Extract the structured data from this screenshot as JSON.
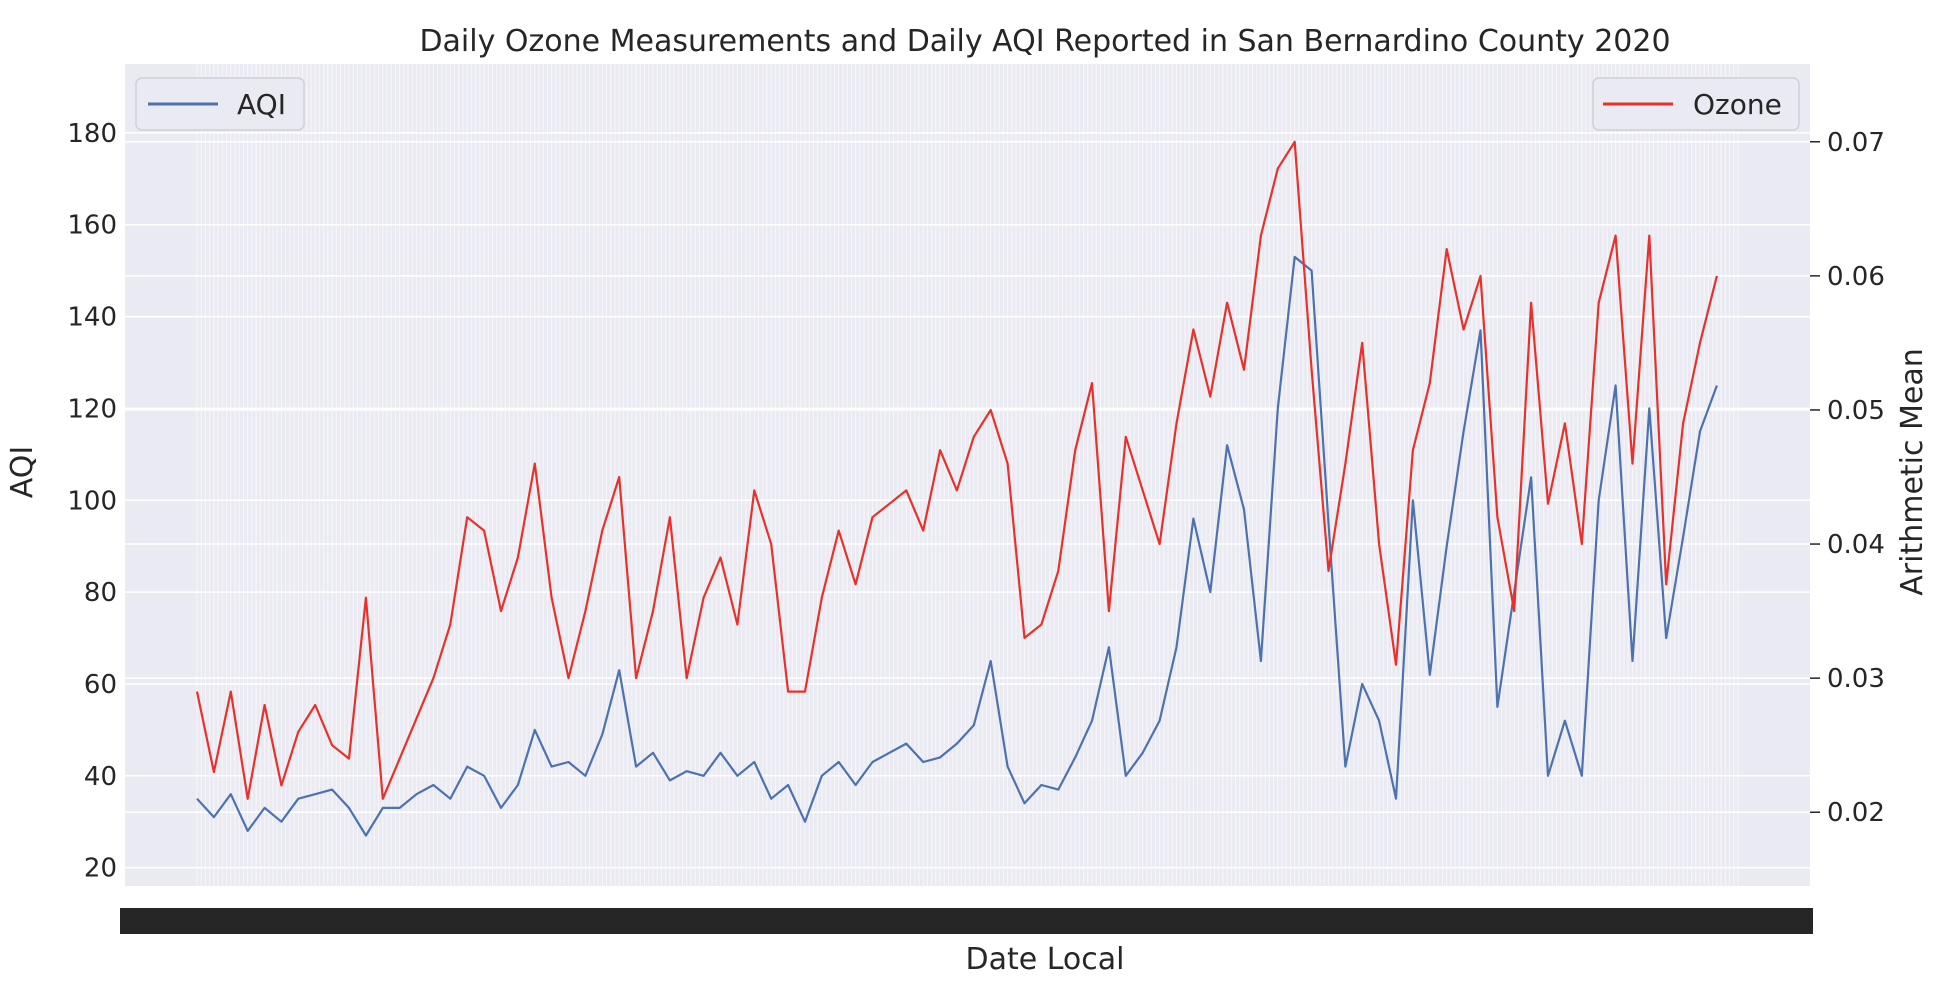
{
  "chart_data": {
    "type": "line",
    "title": "Daily Ozone Measurements and Daily AQI Reported in San Bernardino County 2020",
    "xlabel": "Date Local",
    "ylabel_left": "AQI",
    "ylabel_right": "Arithmetic Mean",
    "x_range_days": [
      0,
      365
    ],
    "left_axis": {
      "ylim": [
        16,
        195
      ],
      "ticks": [
        20,
        40,
        60,
        80,
        100,
        120,
        140,
        160,
        180
      ]
    },
    "right_axis": {
      "ylim": [
        0.0145,
        0.0758
      ],
      "ticks": [
        "0.02",
        "0.03",
        "0.04",
        "0.05",
        "0.06",
        "0.07"
      ]
    },
    "grid": true,
    "background": "#eaeaf2",
    "series": [
      {
        "name": "AQI",
        "axis": "left",
        "color": "#4c72b0",
        "legend_position": "top-left",
        "points": [
          [
            0,
            35
          ],
          [
            4,
            31
          ],
          [
            8,
            36
          ],
          [
            12,
            28
          ],
          [
            16,
            33
          ],
          [
            20,
            30
          ],
          [
            24,
            35
          ],
          [
            28,
            36
          ],
          [
            32,
            37
          ],
          [
            36,
            33
          ],
          [
            40,
            27
          ],
          [
            44,
            33
          ],
          [
            48,
            33
          ],
          [
            52,
            36
          ],
          [
            56,
            38
          ],
          [
            60,
            35
          ],
          [
            64,
            42
          ],
          [
            68,
            40
          ],
          [
            72,
            33
          ],
          [
            76,
            38
          ],
          [
            80,
            50
          ],
          [
            84,
            42
          ],
          [
            88,
            43
          ],
          [
            92,
            40
          ],
          [
            96,
            49
          ],
          [
            100,
            63
          ],
          [
            104,
            42
          ],
          [
            108,
            45
          ],
          [
            112,
            39
          ],
          [
            116,
            41
          ],
          [
            120,
            40
          ],
          [
            124,
            45
          ],
          [
            128,
            40
          ],
          [
            132,
            43
          ],
          [
            136,
            35
          ],
          [
            140,
            38
          ],
          [
            144,
            30
          ],
          [
            148,
            40
          ],
          [
            152,
            43
          ],
          [
            156,
            38
          ],
          [
            160,
            43
          ],
          [
            164,
            45
          ],
          [
            168,
            47
          ],
          [
            172,
            43
          ],
          [
            176,
            44
          ],
          [
            180,
            47
          ],
          [
            184,
            51
          ],
          [
            188,
            65
          ],
          [
            192,
            42
          ],
          [
            196,
            34
          ],
          [
            200,
            38
          ],
          [
            204,
            37
          ],
          [
            208,
            44
          ],
          [
            212,
            52
          ],
          [
            216,
            68
          ],
          [
            220,
            40
          ],
          [
            224,
            45
          ],
          [
            228,
            52
          ],
          [
            232,
            68
          ],
          [
            236,
            96
          ],
          [
            240,
            80
          ],
          [
            244,
            112
          ],
          [
            248,
            98
          ],
          [
            252,
            65
          ],
          [
            256,
            120
          ],
          [
            260,
            153
          ],
          [
            264,
            150
          ],
          [
            268,
            95
          ],
          [
            272,
            42
          ],
          [
            276,
            60
          ],
          [
            280,
            52
          ],
          [
            284,
            35
          ],
          [
            288,
            100
          ],
          [
            292,
            62
          ],
          [
            296,
            90
          ],
          [
            300,
            115
          ],
          [
            304,
            137
          ],
          [
            308,
            55
          ],
          [
            312,
            80
          ],
          [
            316,
            105
          ],
          [
            320,
            40
          ],
          [
            324,
            52
          ],
          [
            328,
            40
          ],
          [
            332,
            100
          ],
          [
            336,
            125
          ],
          [
            340,
            65
          ],
          [
            344,
            120
          ],
          [
            348,
            70
          ],
          [
            352,
            92
          ],
          [
            356,
            115
          ],
          [
            360,
            125
          ]
        ]
      },
      {
        "name": "Ozone",
        "axis": "right",
        "color": "#e8312a",
        "legend_position": "top-right",
        "points": [
          [
            0,
            0.029
          ],
          [
            4,
            0.023
          ],
          [
            8,
            0.029
          ],
          [
            12,
            0.021
          ],
          [
            16,
            0.028
          ],
          [
            20,
            0.022
          ],
          [
            24,
            0.026
          ],
          [
            28,
            0.028
          ],
          [
            32,
            0.025
          ],
          [
            36,
            0.024
          ],
          [
            40,
            0.036
          ],
          [
            44,
            0.021
          ],
          [
            48,
            0.024
          ],
          [
            52,
            0.027
          ],
          [
            56,
            0.03
          ],
          [
            60,
            0.034
          ],
          [
            64,
            0.042
          ],
          [
            68,
            0.041
          ],
          [
            72,
            0.035
          ],
          [
            76,
            0.039
          ],
          [
            80,
            0.046
          ],
          [
            84,
            0.036
          ],
          [
            88,
            0.03
          ],
          [
            92,
            0.035
          ],
          [
            96,
            0.041
          ],
          [
            100,
            0.045
          ],
          [
            104,
            0.03
          ],
          [
            108,
            0.035
          ],
          [
            112,
            0.042
          ],
          [
            116,
            0.03
          ],
          [
            120,
            0.036
          ],
          [
            124,
            0.039
          ],
          [
            128,
            0.034
          ],
          [
            132,
            0.044
          ],
          [
            136,
            0.04
          ],
          [
            140,
            0.029
          ],
          [
            144,
            0.029
          ],
          [
            148,
            0.036
          ],
          [
            152,
            0.041
          ],
          [
            156,
            0.037
          ],
          [
            160,
            0.042
          ],
          [
            164,
            0.043
          ],
          [
            168,
            0.044
          ],
          [
            172,
            0.041
          ],
          [
            176,
            0.047
          ],
          [
            180,
            0.044
          ],
          [
            184,
            0.048
          ],
          [
            188,
            0.05
          ],
          [
            192,
            0.046
          ],
          [
            196,
            0.033
          ],
          [
            200,
            0.034
          ],
          [
            204,
            0.038
          ],
          [
            208,
            0.047
          ],
          [
            212,
            0.052
          ],
          [
            216,
            0.035
          ],
          [
            220,
            0.048
          ],
          [
            224,
            0.044
          ],
          [
            228,
            0.04
          ],
          [
            232,
            0.049
          ],
          [
            236,
            0.056
          ],
          [
            240,
            0.051
          ],
          [
            244,
            0.058
          ],
          [
            248,
            0.053
          ],
          [
            252,
            0.063
          ],
          [
            256,
            0.068
          ],
          [
            260,
            0.07
          ],
          [
            264,
            0.053
          ],
          [
            268,
            0.038
          ],
          [
            272,
            0.046
          ],
          [
            276,
            0.055
          ],
          [
            280,
            0.04
          ],
          [
            284,
            0.031
          ],
          [
            288,
            0.047
          ],
          [
            292,
            0.052
          ],
          [
            296,
            0.062
          ],
          [
            300,
            0.056
          ],
          [
            304,
            0.06
          ],
          [
            308,
            0.042
          ],
          [
            312,
            0.035
          ],
          [
            316,
            0.058
          ],
          [
            320,
            0.043
          ],
          [
            324,
            0.049
          ],
          [
            328,
            0.04
          ],
          [
            332,
            0.058
          ],
          [
            336,
            0.063
          ],
          [
            340,
            0.046
          ],
          [
            344,
            0.063
          ],
          [
            348,
            0.037
          ],
          [
            352,
            0.049
          ],
          [
            356,
            0.055
          ],
          [
            360,
            0.06
          ]
        ]
      }
    ]
  }
}
